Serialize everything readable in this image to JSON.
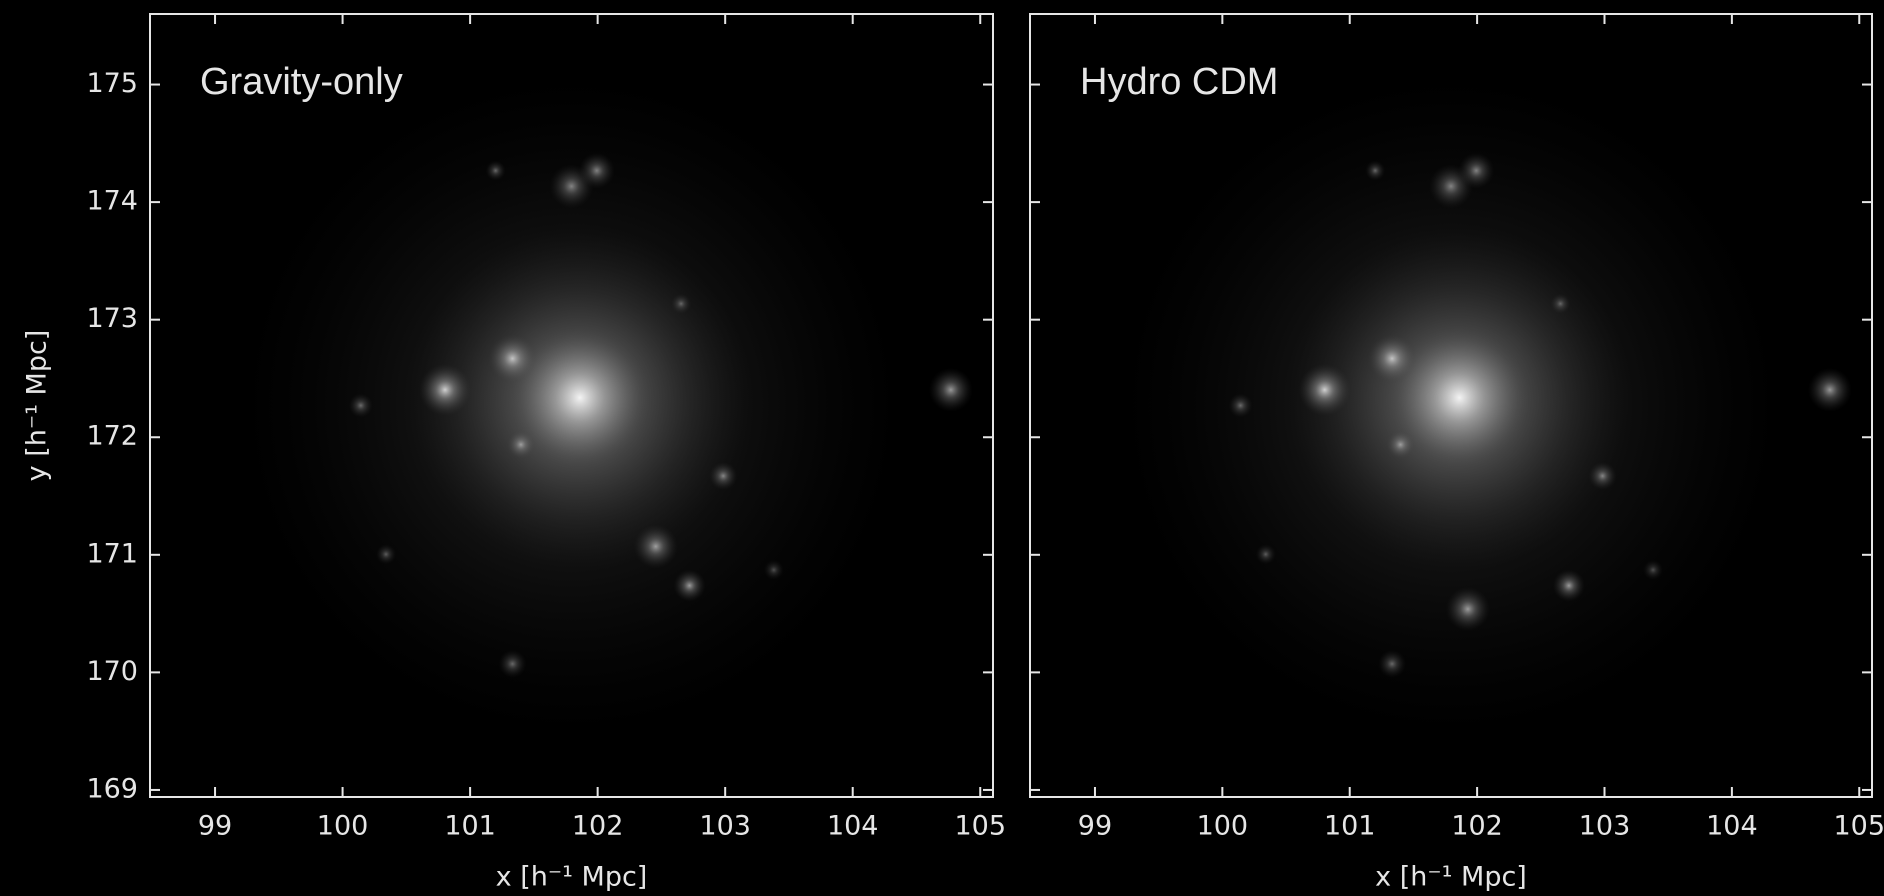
{
  "chart_data": [
    {
      "type": "image",
      "title": "Gravity-only",
      "xlabel": "x [h⁻¹ Mpc]",
      "ylabel": "y [h⁻¹ Mpc]",
      "xlim": [
        98.49,
        105.1
      ],
      "ylim": [
        168.94,
        175.6
      ],
      "xticks": [
        99,
        100,
        101,
        102,
        103,
        104,
        105
      ],
      "yticks": [
        169,
        170,
        171,
        172,
        173,
        174,
        175
      ]
    },
    {
      "type": "image",
      "title": "Hydro CDM",
      "xlabel": "x [h⁻¹ Mpc]",
      "xlim": [
        98.49,
        105.1
      ],
      "ylim": [
        168.94,
        175.6
      ],
      "xticks": [
        99,
        100,
        101,
        102,
        103,
        104,
        105
      ],
      "yticks": [
        169,
        170,
        171,
        172,
        173,
        174,
        175
      ]
    }
  ]
}
